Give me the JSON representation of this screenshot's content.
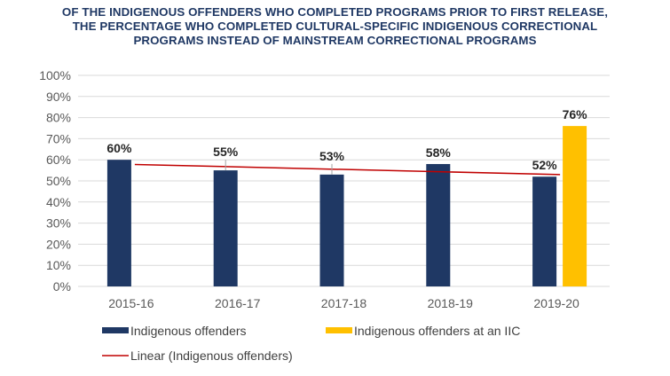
{
  "chart_data": {
    "type": "bar",
    "title_lines": [
      "OF THE INDIGENOUS OFFENDERS WHO COMPLETED PROGRAMS PRIOR TO FIRST RELEASE,",
      "THE PERCENTAGE WHO COMPLETED CULTURAL-SPECIFIC INDIGENOUS CORRECTIONAL",
      "PROGRAMS INSTEAD OF MAINSTREAM CORRECTIONAL PROGRAMS"
    ],
    "xlabel": "",
    "ylabel": "",
    "ylim": [
      0,
      100
    ],
    "yticks": [
      "0%",
      "10%",
      "20%",
      "30%",
      "40%",
      "50%",
      "60%",
      "70%",
      "80%",
      "90%",
      "100%"
    ],
    "grid": true,
    "categories": [
      "2015-16",
      "2016-17",
      "2017-18",
      "2018-19",
      "2019-20"
    ],
    "series": [
      {
        "name": "Indigenous offenders",
        "color": "#1f3864",
        "values": [
          60,
          55,
          53,
          58,
          52
        ],
        "labels": [
          "60%",
          "55%",
          "53%",
          "58%",
          "52%"
        ]
      },
      {
        "name": "Indigenous offenders at an IIC",
        "color": "#ffc000",
        "values": [
          null,
          null,
          null,
          null,
          76
        ],
        "labels": [
          null,
          null,
          null,
          null,
          "76%"
        ]
      }
    ],
    "trendline": {
      "name": "Linear (Indigenous offenders)",
      "color": "#c00000",
      "of_series": "Indigenous offenders",
      "type": "linear"
    },
    "legend_position": "bottom"
  }
}
